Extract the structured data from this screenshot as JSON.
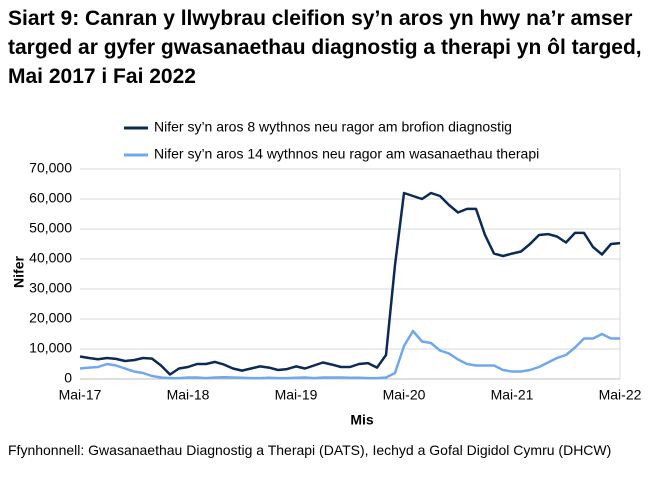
{
  "chart_data": {
    "type": "line",
    "title": "Siart 9: Canran y llwybrau cleifion sy’n aros yn hwy na’r amser targed ar gyfer gwasanaethau diagnostig a therapi yn ôl targed, Mai 2017 i Fai 2022",
    "x_label": "Mis",
    "y_label": "Nifer",
    "source": "Ffynhonnell: Gwasanaethau Diagnostig a Therapi (DATS), Iechyd a Gofal Digidol Cymru (DHCW)",
    "categories": [
      "Mai-17",
      null,
      null,
      null,
      null,
      null,
      null,
      null,
      null,
      null,
      null,
      null,
      "Mai-18",
      null,
      null,
      null,
      null,
      null,
      null,
      null,
      null,
      null,
      null,
      null,
      "Mai-19",
      null,
      null,
      null,
      null,
      null,
      null,
      null,
      null,
      null,
      null,
      null,
      "Mai-20",
      null,
      null,
      null,
      null,
      null,
      null,
      null,
      null,
      null,
      null,
      null,
      "Mai-21",
      null,
      null,
      null,
      null,
      null,
      null,
      null,
      null,
      null,
      null,
      null,
      "Mai-22"
    ],
    "series": [
      {
        "name": "Nifer sy’n aros 8 wythnos neu ragor am brofion diagnostig",
        "color": "#0c2a56",
        "values": [
          7500,
          7000,
          6600,
          7000,
          6700,
          6000,
          6300,
          7000,
          6800,
          4500,
          1500,
          3500,
          4000,
          5000,
          5000,
          5700,
          4800,
          3500,
          2800,
          3500,
          4200,
          3800,
          3000,
          3300,
          4200,
          3500,
          4500,
          5500,
          4800,
          4000,
          4000,
          5000,
          5300,
          3800,
          8000,
          38000,
          62000,
          61000,
          60000,
          62000,
          61000,
          58000,
          55500,
          56700,
          56700,
          48000,
          41800,
          41000,
          41800,
          42500,
          45000,
          48000,
          48300,
          47500,
          45500,
          48700,
          48700,
          44000,
          41500,
          45000,
          45300
        ]
      },
      {
        "name": "Nifer sy’n aros 14 wythnos neu ragor am wasanaethau therapi",
        "color": "#6fa8ef",
        "values": [
          3500,
          3800,
          4000,
          5000,
          4500,
          3500,
          2500,
          2000,
          1000,
          500,
          300,
          300,
          500,
          500,
          300,
          500,
          600,
          500,
          400,
          300,
          300,
          400,
          300,
          300,
          400,
          500,
          300,
          500,
          500,
          500,
          400,
          400,
          300,
          300,
          500,
          2000,
          11000,
          16000,
          12500,
          12000,
          9500,
          8500,
          6500,
          5000,
          4500,
          4500,
          4500,
          3000,
          2500,
          2500,
          3000,
          4000,
          5500,
          7000,
          8000,
          10500,
          13500,
          13500,
          15000,
          13500,
          13500
        ]
      }
    ],
    "ylim": [
      0,
      70000
    ],
    "yticks": [
      0,
      {
        "value": 10000,
        "label": "10,000"
      },
      {
        "value": 20000,
        "label": "20,000"
      },
      {
        "value": 30000,
        "label": "30,000"
      },
      {
        "value": 40000,
        "label": "40,000"
      },
      {
        "value": 50000,
        "label": "50,000"
      },
      {
        "value": 60000,
        "label": "60,000"
      },
      {
        "value": 70000,
        "label": "70,000"
      }
    ],
    "grid": true
  }
}
